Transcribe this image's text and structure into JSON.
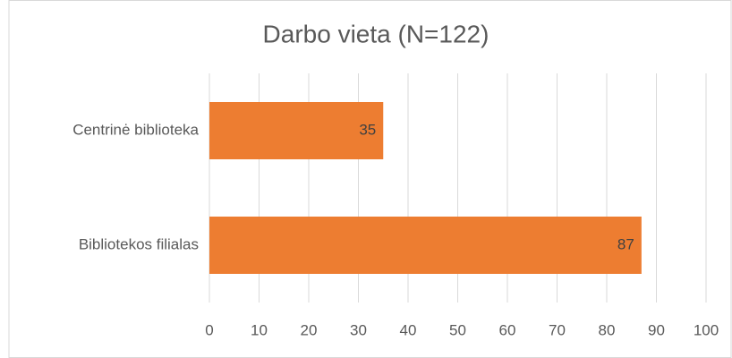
{
  "chart_data": {
    "type": "bar",
    "orientation": "horizontal",
    "title": "Darbo vieta (N=122)",
    "categories": [
      "Centrinė biblioteka",
      "Bibliotekos filialas"
    ],
    "values": [
      35,
      87
    ],
    "color": "#ed7d31",
    "xlim": [
      0,
      100
    ],
    "xticks": [
      0,
      10,
      20,
      30,
      40,
      50,
      60,
      70,
      80,
      90,
      100
    ],
    "grid": true
  }
}
